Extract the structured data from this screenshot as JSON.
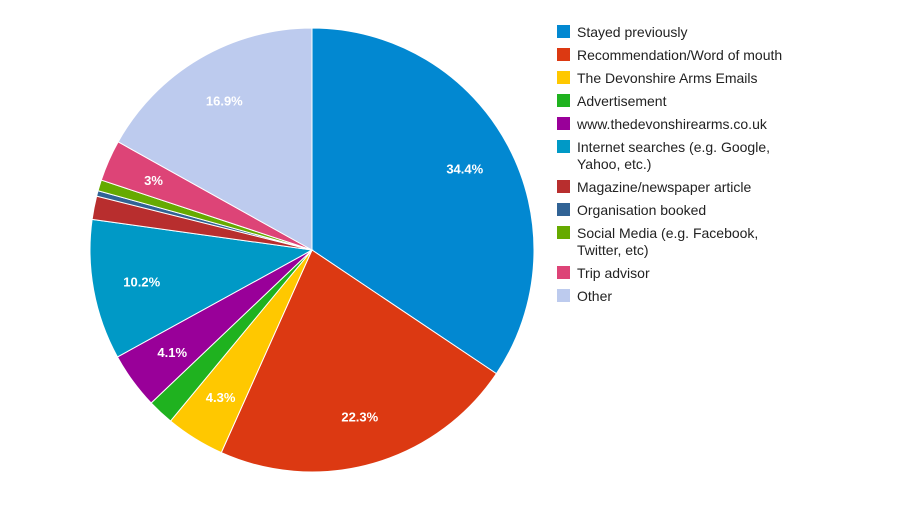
{
  "chart_data": {
    "type": "pie",
    "start_angle_deg": 0,
    "direction": "clockwise",
    "legend_position": "right",
    "slices": [
      {
        "label": [
          "Stayed previously"
        ],
        "value": 34.4,
        "value_label": "34.4%",
        "color": "#0288d1"
      },
      {
        "label": [
          "Recommendation/Word of mouth"
        ],
        "value": 22.3,
        "value_label": "22.3%",
        "color": "#dc3912"
      },
      {
        "label": [
          "The Devonshire Arms Emails"
        ],
        "value": 4.3,
        "value_label": "4.3%",
        "color": "#ffc800"
      },
      {
        "label": [
          "Advertisement"
        ],
        "value": 1.9,
        "value_label": "",
        "color": "#1fb21f"
      },
      {
        "label": [
          "www.thedevonshirearms.co.uk"
        ],
        "value": 4.1,
        "value_label": "4.1%",
        "color": "#990099"
      },
      {
        "label": [
          "Internet searches (e.g. Google,",
          "Yahoo, etc.)"
        ],
        "value": 10.2,
        "value_label": "10.2%",
        "color": "#0099c6"
      },
      {
        "label": [
          "Magazine/newspaper article"
        ],
        "value": 1.7,
        "value_label": "",
        "color": "#b82e2e"
      },
      {
        "label": [
          "Organisation booked"
        ],
        "value": 0.4,
        "value_label": "",
        "color": "#316395"
      },
      {
        "label": [
          "Social Media (e.g. Facebook,",
          "Twitter, etc)"
        ],
        "value": 0.8,
        "value_label": "",
        "color": "#66aa00"
      },
      {
        "label": [
          "Trip advisor"
        ],
        "value": 3.0,
        "value_label": "3%",
        "color": "#dd4477"
      },
      {
        "label": [
          "Other"
        ],
        "value": 16.9,
        "value_label": "16.9%",
        "color": "#bdcbee"
      }
    ]
  }
}
